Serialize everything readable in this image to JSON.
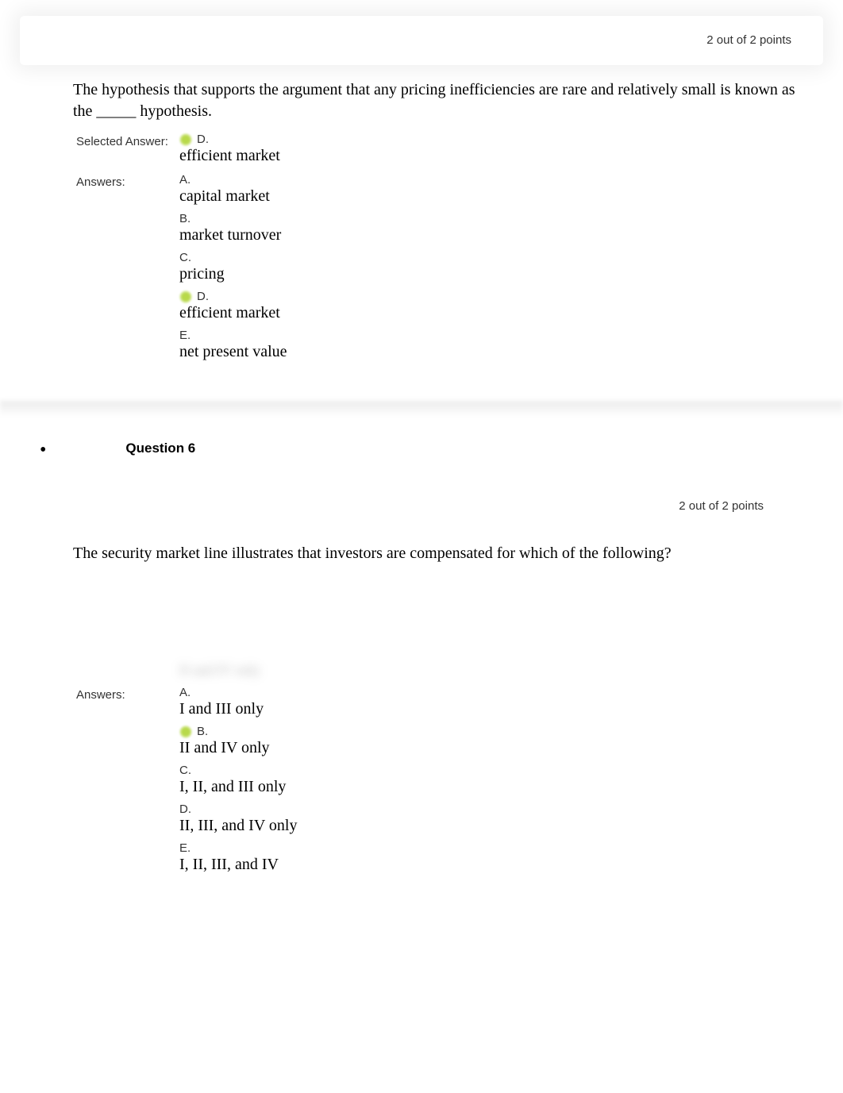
{
  "q5": {
    "points": "2 out of 2 points",
    "question_text": "The hypothesis that supports the argument that any pricing inefficiencies are rare and relatively small is known as the _____ hypothesis.",
    "selected_label": "Selected Answer:",
    "answers_label": "Answers:",
    "selected": {
      "letter": "D.",
      "text": "efficient market",
      "correct": true
    },
    "options": [
      {
        "letter": "A.",
        "text": "capital market",
        "correct": false
      },
      {
        "letter": "B.",
        "text": "market turnover",
        "correct": false
      },
      {
        "letter": "C.",
        "text": "pricing",
        "correct": false
      },
      {
        "letter": "D.",
        "text": "efficient market",
        "correct": true
      },
      {
        "letter": "E.",
        "text": "net present value",
        "correct": false
      }
    ]
  },
  "q6": {
    "title": "Question 6",
    "points": "2 out of 2 points",
    "question_text": "The security market line illustrates that investors are compensated for which of the following?",
    "answers_label": "Answers:",
    "options": [
      {
        "letter": "A.",
        "text": "I and III only",
        "correct": false
      },
      {
        "letter": "B.",
        "text": "II and IV only",
        "correct": true
      },
      {
        "letter": "C.",
        "text": "I, II, and III only",
        "correct": false
      },
      {
        "letter": "D.",
        "text": "II, III, and IV only",
        "correct": false
      },
      {
        "letter": "E.",
        "text": "I, II, III, and IV",
        "correct": false
      }
    ]
  }
}
